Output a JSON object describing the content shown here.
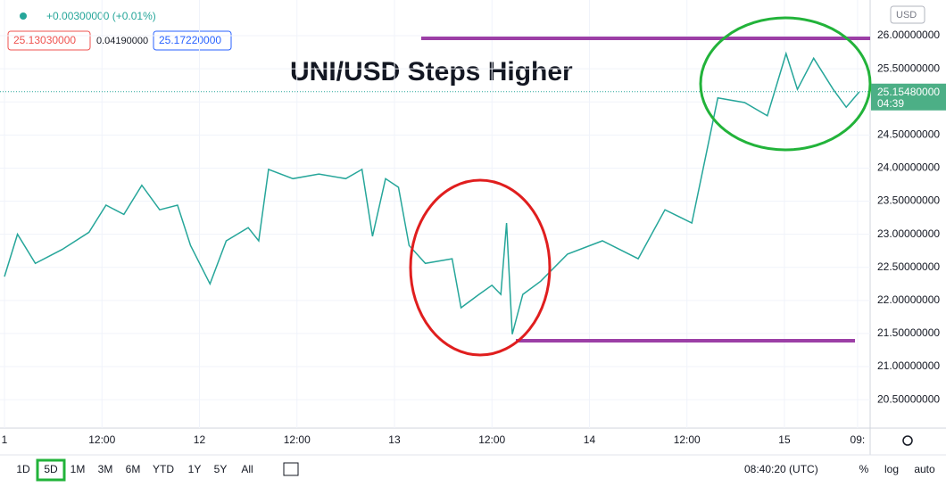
{
  "header": {
    "change": "+0.00300000 (+0.01%)",
    "bid": "25.13030000",
    "spread": "0.04190000",
    "ask": "25.17220000",
    "currency": "USD"
  },
  "chart_data": {
    "type": "line",
    "title": "UNI/USD Steps Higher",
    "color": "#26a69a",
    "grid": true,
    "x": [
      0,
      1.6,
      3.8,
      7.1,
      10.4,
      12.5,
      14.7,
      16.9,
      19.1,
      21.3,
      22.9,
      25.3,
      27.3,
      30.0,
      31.3,
      32.5,
      35.5,
      38.7,
      42.0,
      44.0,
      45.3,
      46.9,
      48.5,
      49.8,
      51.8,
      55.1,
      56.2,
      58.4,
      60.0,
      61.1,
      61.8,
      62.5,
      63.8,
      66.0,
      69.3,
      73.6,
      78.0,
      81.3,
      84.6,
      86.2,
      87.8,
      91.1,
      93.9,
      96.2,
      97.6,
      99.6,
      102.0,
      103.6,
      105.2
    ],
    "values": [
      22.36,
      23.0,
      22.56,
      22.77,
      23.03,
      23.44,
      23.3,
      23.74,
      23.37,
      23.44,
      22.83,
      22.25,
      22.9,
      23.1,
      22.9,
      23.98,
      23.84,
      23.91,
      23.84,
      23.98,
      22.97,
      23.84,
      23.71,
      22.83,
      22.56,
      22.63,
      21.89,
      22.09,
      22.23,
      22.09,
      23.17,
      21.49,
      22.09,
      22.29,
      22.7,
      22.9,
      22.63,
      23.37,
      23.17,
      24.11,
      25.06,
      24.99,
      24.79,
      25.73,
      25.19,
      25.66,
      25.19,
      24.92,
      25.15
    ],
    "xlim": [
      0,
      106
    ],
    "ylim": [
      20.07,
      26.54
    ],
    "xticks": [
      {
        "value": 0,
        "label": "1"
      },
      {
        "value": 12,
        "label": "12:00"
      },
      {
        "value": 24,
        "label": "12"
      },
      {
        "value": 36,
        "label": "12:00"
      },
      {
        "value": 48,
        "label": "13"
      },
      {
        "value": 60,
        "label": "12:00"
      },
      {
        "value": 72,
        "label": "14"
      },
      {
        "value": 84,
        "label": "12:00"
      },
      {
        "value": 96,
        "label": "15"
      },
      {
        "value": 105,
        "label": "09:"
      }
    ],
    "yticks": [
      {
        "value": 20.5,
        "label": "20.50000000"
      },
      {
        "value": 21,
        "label": "21.00000000"
      },
      {
        "value": 21.5,
        "label": "21.50000000"
      },
      {
        "value": 22,
        "label": "22.00000000"
      },
      {
        "value": 22.5,
        "label": "22.50000000"
      },
      {
        "value": 23,
        "label": "23.00000000"
      },
      {
        "value": 23.5,
        "label": "23.50000000"
      },
      {
        "value": 24,
        "label": "24.00000000"
      },
      {
        "value": 24.5,
        "label": "24.50000000"
      },
      {
        "value": 25,
        "label": "25.00000000"
      },
      {
        "value": 25.5,
        "label": "25.50000000"
      },
      {
        "value": 26,
        "label": "26.00000000"
      }
    ],
    "last_price": {
      "value": 25.1548,
      "label": "25.15480000"
    },
    "countdown": "04:39"
  },
  "toolbar": {
    "ranges": [
      "1D",
      "5D",
      "1M",
      "3M",
      "6M",
      "YTD",
      "1Y",
      "5Y",
      "All"
    ],
    "time": "08:40:20 (UTC)",
    "options": [
      "%",
      "log",
      "auto"
    ]
  }
}
